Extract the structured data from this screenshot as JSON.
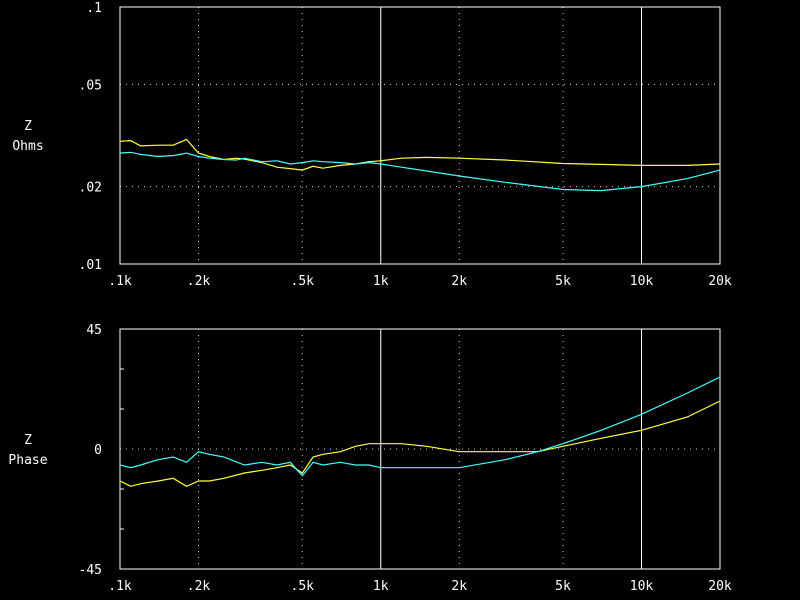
{
  "chart_data": [
    {
      "type": "line",
      "xscale": "log",
      "yscale": "log",
      "xlim": [
        100,
        20000
      ],
      "ylim": [
        0.01,
        0.1
      ],
      "ylabel_lines": [
        "Z",
        "Ohms"
      ],
      "x_tick_labels": [
        {
          "v": 100,
          "label": ".1k"
        },
        {
          "v": 200,
          "label": ".2k"
        },
        {
          "v": 500,
          "label": ".5k"
        },
        {
          "v": 1000,
          "label": "1k"
        },
        {
          "v": 2000,
          "label": "2k"
        },
        {
          "v": 5000,
          "label": "5k"
        },
        {
          "v": 10000,
          "label": "10k"
        },
        {
          "v": 20000,
          "label": "20k"
        }
      ],
      "y_tick_labels": [
        {
          "v": 0.1,
          "label": ".1"
        },
        {
          "v": 0.05,
          "label": ".05"
        },
        {
          "v": 0.02,
          "label": ".02"
        },
        {
          "v": 0.01,
          "label": ".01"
        }
      ],
      "grid": {
        "solid_x": [
          1000,
          10000
        ],
        "dotted_x": [
          200,
          500,
          2000,
          5000
        ],
        "dotted_y": [
          0.05,
          0.02
        ]
      },
      "series": [
        {
          "color": "#ffff40",
          "points": [
            [
              100,
              0.03
            ],
            [
              110,
              0.0302
            ],
            [
              120,
              0.0288
            ],
            [
              140,
              0.029
            ],
            [
              160,
              0.029
            ],
            [
              180,
              0.0305
            ],
            [
              200,
              0.027
            ],
            [
              220,
              0.0262
            ],
            [
              250,
              0.0255
            ],
            [
              280,
              0.0258
            ],
            [
              300,
              0.0256
            ],
            [
              350,
              0.0248
            ],
            [
              400,
              0.0238
            ],
            [
              450,
              0.0235
            ],
            [
              500,
              0.0232
            ],
            [
              550,
              0.024
            ],
            [
              600,
              0.0236
            ],
            [
              700,
              0.0242
            ],
            [
              800,
              0.0245
            ],
            [
              900,
              0.025
            ],
            [
              1000,
              0.0252
            ],
            [
              1200,
              0.0258
            ],
            [
              1500,
              0.026
            ],
            [
              2000,
              0.0258
            ],
            [
              3000,
              0.0254
            ],
            [
              5000,
              0.0246
            ],
            [
              7000,
              0.0244
            ],
            [
              10000,
              0.0242
            ],
            [
              15000,
              0.0242
            ],
            [
              20000,
              0.0245
            ]
          ]
        },
        {
          "color": "#40ffff",
          "points": [
            [
              100,
              0.027
            ],
            [
              110,
              0.0272
            ],
            [
              120,
              0.0267
            ],
            [
              140,
              0.0262
            ],
            [
              160,
              0.0264
            ],
            [
              180,
              0.027
            ],
            [
              200,
              0.0262
            ],
            [
              220,
              0.0258
            ],
            [
              250,
              0.0255
            ],
            [
              280,
              0.0254
            ],
            [
              300,
              0.0258
            ],
            [
              350,
              0.025
            ],
            [
              400,
              0.0252
            ],
            [
              450,
              0.0245
            ],
            [
              500,
              0.0248
            ],
            [
              550,
              0.0252
            ],
            [
              600,
              0.025
            ],
            [
              700,
              0.0248
            ],
            [
              800,
              0.0245
            ],
            [
              900,
              0.0248
            ],
            [
              1000,
              0.0245
            ],
            [
              1200,
              0.0238
            ],
            [
              1500,
              0.023
            ],
            [
              2000,
              0.022
            ],
            [
              3000,
              0.0208
            ],
            [
              5000,
              0.0195
            ],
            [
              7000,
              0.0193
            ],
            [
              10000,
              0.02
            ],
            [
              15000,
              0.0215
            ],
            [
              20000,
              0.0232
            ]
          ]
        }
      ]
    },
    {
      "type": "line",
      "xscale": "log",
      "yscale": "linear",
      "xlim": [
        100,
        20000
      ],
      "ylim": [
        -45,
        45
      ],
      "ylabel_lines": [
        "Z",
        "Phase"
      ],
      "x_tick_labels": [
        {
          "v": 100,
          "label": ".1k"
        },
        {
          "v": 200,
          "label": ".2k"
        },
        {
          "v": 500,
          "label": ".5k"
        },
        {
          "v": 1000,
          "label": "1k"
        },
        {
          "v": 2000,
          "label": "2k"
        },
        {
          "v": 5000,
          "label": "5k"
        },
        {
          "v": 10000,
          "label": "10k"
        },
        {
          "v": 20000,
          "label": "20k"
        }
      ],
      "y_tick_labels": [
        {
          "v": 45,
          "label": "45"
        },
        {
          "v": 0,
          "label": "0"
        },
        {
          "v": -45,
          "label": "-45"
        }
      ],
      "grid": {
        "solid_x": [
          1000,
          10000
        ],
        "dotted_x": [
          200,
          500,
          2000,
          5000
        ],
        "dotted_y": [
          0
        ]
      },
      "series": [
        {
          "color": "#ffff40",
          "points": [
            [
              100,
              -12
            ],
            [
              110,
              -14
            ],
            [
              120,
              -13
            ],
            [
              140,
              -12
            ],
            [
              160,
              -11
            ],
            [
              180,
              -14
            ],
            [
              200,
              -12
            ],
            [
              220,
              -12
            ],
            [
              250,
              -11
            ],
            [
              300,
              -9
            ],
            [
              350,
              -8
            ],
            [
              400,
              -7
            ],
            [
              450,
              -6
            ],
            [
              500,
              -9
            ],
            [
              550,
              -3
            ],
            [
              600,
              -2
            ],
            [
              700,
              -1
            ],
            [
              800,
              1
            ],
            [
              900,
              2
            ],
            [
              1000,
              2
            ],
            [
              1200,
              2
            ],
            [
              1500,
              1
            ],
            [
              2000,
              -1
            ],
            [
              3000,
              -1
            ],
            [
              4000,
              -1
            ],
            [
              5000,
              1
            ],
            [
              7000,
              4
            ],
            [
              10000,
              7
            ],
            [
              15000,
              12
            ],
            [
              20000,
              18
            ]
          ]
        },
        {
          "color": "#40ffff",
          "points": [
            [
              100,
              -6
            ],
            [
              110,
              -7
            ],
            [
              120,
              -6
            ],
            [
              140,
              -4
            ],
            [
              160,
              -3
            ],
            [
              180,
              -5
            ],
            [
              200,
              -1
            ],
            [
              220,
              -2
            ],
            [
              250,
              -3
            ],
            [
              300,
              -6
            ],
            [
              350,
              -5
            ],
            [
              400,
              -6
            ],
            [
              450,
              -5
            ],
            [
              500,
              -10
            ],
            [
              550,
              -5
            ],
            [
              600,
              -6
            ],
            [
              700,
              -5
            ],
            [
              800,
              -6
            ],
            [
              900,
              -6
            ],
            [
              1000,
              -7
            ],
            [
              1200,
              -7
            ],
            [
              1500,
              -7
            ],
            [
              2000,
              -7
            ],
            [
              3000,
              -4
            ],
            [
              4000,
              -1
            ],
            [
              5000,
              2
            ],
            [
              7000,
              7
            ],
            [
              10000,
              13
            ],
            [
              15000,
              21
            ],
            [
              20000,
              27
            ]
          ]
        }
      ]
    }
  ]
}
